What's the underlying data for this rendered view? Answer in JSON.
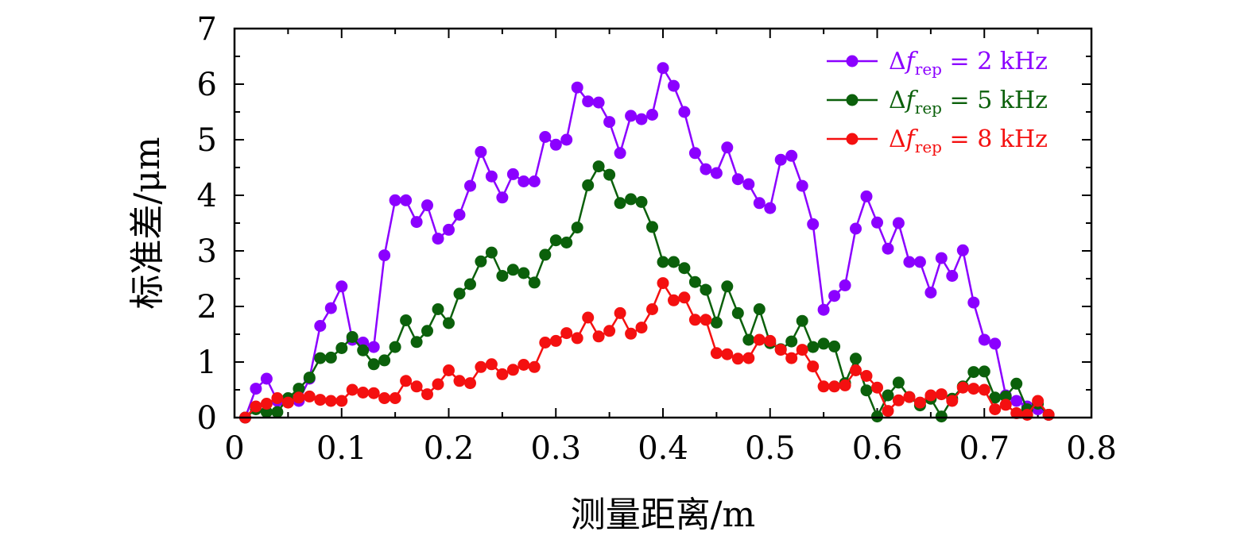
{
  "chart_data": {
    "type": "line",
    "xlabel": "测量距离/m",
    "ylabel": "标准差/μm",
    "xlim": [
      0,
      0.8
    ],
    "ylim": [
      0,
      7
    ],
    "xticks": [
      "0",
      "0.1",
      "0.2",
      "0.3",
      "0.4",
      "0.5",
      "0.6",
      "0.7",
      "0.8"
    ],
    "yticks": [
      "0",
      "1",
      "2",
      "3",
      "4",
      "5",
      "6",
      "7"
    ],
    "grid": false,
    "legend_position": "top-right",
    "series": [
      {
        "name": "Δf_rep = 2 kHz",
        "legend": {
          "delta": "Δ",
          "f": "f",
          "sub": "rep",
          "rest": " = 2 kHz"
        },
        "color": "#8B00FF",
        "x": [
          0.01,
          0.02,
          0.03,
          0.04,
          0.05,
          0.06,
          0.07,
          0.08,
          0.09,
          0.1,
          0.11,
          0.12,
          0.13,
          0.14,
          0.15,
          0.16,
          0.17,
          0.18,
          0.19,
          0.2,
          0.21,
          0.22,
          0.23,
          0.24,
          0.25,
          0.26,
          0.27,
          0.28,
          0.29,
          0.3,
          0.31,
          0.32,
          0.33,
          0.34,
          0.35,
          0.36,
          0.37,
          0.38,
          0.39,
          0.4,
          0.41,
          0.42,
          0.43,
          0.44,
          0.45,
          0.46,
          0.47,
          0.48,
          0.49,
          0.5,
          0.51,
          0.52,
          0.53,
          0.54,
          0.55,
          0.56,
          0.57,
          0.58,
          0.59,
          0.6,
          0.61,
          0.62,
          0.63,
          0.64,
          0.65,
          0.66,
          0.67,
          0.68,
          0.69,
          0.7,
          0.71,
          0.72,
          0.73,
          0.74,
          0.75,
          0.76
        ],
        "y": [
          0,
          0.52,
          0.7,
          0.3,
          0.3,
          0.3,
          0.7,
          1.65,
          1.97,
          2.36,
          1.4,
          1.35,
          1.27,
          2.92,
          3.91,
          3.91,
          3.52,
          3.82,
          3.22,
          3.38,
          3.65,
          4.17,
          4.78,
          4.34,
          3.96,
          4.38,
          4.25,
          4.25,
          5.05,
          4.91,
          5.0,
          5.94,
          5.69,
          5.67,
          5.32,
          4.76,
          5.43,
          5.37,
          5.45,
          6.29,
          5.97,
          5.5,
          4.76,
          4.47,
          4.4,
          4.86,
          4.29,
          4.2,
          3.86,
          3.77,
          4.64,
          4.71,
          4.17,
          3.48,
          1.94,
          2.19,
          2.38,
          3.4,
          3.98,
          3.51,
          3.04,
          3.5,
          2.8,
          2.8,
          2.25,
          2.87,
          2.55,
          3.01,
          2.07,
          1.4,
          1.33,
          0.4,
          0.3,
          0.2,
          0.15,
          0.05
        ]
      },
      {
        "name": "Δf_rep = 5 kHz",
        "legend": {
          "delta": "Δ",
          "f": "f",
          "sub": "rep",
          "rest": " = 5 kHz"
        },
        "color": "#0B600B",
        "x": [
          0.01,
          0.02,
          0.03,
          0.04,
          0.05,
          0.06,
          0.07,
          0.08,
          0.09,
          0.1,
          0.11,
          0.12,
          0.13,
          0.14,
          0.15,
          0.16,
          0.17,
          0.18,
          0.19,
          0.2,
          0.21,
          0.22,
          0.23,
          0.24,
          0.25,
          0.26,
          0.27,
          0.28,
          0.29,
          0.3,
          0.31,
          0.32,
          0.33,
          0.34,
          0.35,
          0.36,
          0.37,
          0.38,
          0.39,
          0.4,
          0.41,
          0.42,
          0.43,
          0.44,
          0.45,
          0.46,
          0.47,
          0.48,
          0.49,
          0.5,
          0.51,
          0.52,
          0.53,
          0.54,
          0.55,
          0.56,
          0.57,
          0.58,
          0.59,
          0.6,
          0.61,
          0.62,
          0.63,
          0.64,
          0.65,
          0.66,
          0.67,
          0.68,
          0.69,
          0.7,
          0.71,
          0.72,
          0.73,
          0.74,
          0.75,
          0.76
        ],
        "y": [
          0,
          0.15,
          0.1,
          0.1,
          0.35,
          0.52,
          0.72,
          1.07,
          1.08,
          1.25,
          1.45,
          1.21,
          0.96,
          1.03,
          1.27,
          1.75,
          1.36,
          1.56,
          1.95,
          1.7,
          2.23,
          2.4,
          2.81,
          2.97,
          2.55,
          2.66,
          2.6,
          2.43,
          2.93,
          3.19,
          3.15,
          3.42,
          4.18,
          4.52,
          4.37,
          3.86,
          3.93,
          3.88,
          3.43,
          2.8,
          2.8,
          2.69,
          2.44,
          2.3,
          1.71,
          2.36,
          1.88,
          1.4,
          1.95,
          1.34,
          1.23,
          1.37,
          1.74,
          1.27,
          1.33,
          1.28,
          0.62,
          1.06,
          0.49,
          0.02,
          0.4,
          0.63,
          0.37,
          0.22,
          0.34,
          0.02,
          0.34,
          0.56,
          0.82,
          0.83,
          0.36,
          0.38,
          0.61,
          0.15,
          0.25,
          0.05
        ]
      },
      {
        "name": "Δf_rep = 8 kHz",
        "legend": {
          "delta": "Δ",
          "f": "f",
          "sub": "rep",
          "rest": " = 8 kHz"
        },
        "color": "#F41010",
        "x": [
          0.01,
          0.02,
          0.03,
          0.04,
          0.05,
          0.06,
          0.07,
          0.08,
          0.09,
          0.1,
          0.11,
          0.12,
          0.13,
          0.14,
          0.15,
          0.16,
          0.17,
          0.18,
          0.19,
          0.2,
          0.21,
          0.22,
          0.23,
          0.24,
          0.25,
          0.26,
          0.27,
          0.28,
          0.29,
          0.3,
          0.31,
          0.32,
          0.33,
          0.34,
          0.35,
          0.36,
          0.37,
          0.38,
          0.39,
          0.4,
          0.41,
          0.42,
          0.43,
          0.44,
          0.45,
          0.46,
          0.47,
          0.48,
          0.49,
          0.5,
          0.51,
          0.52,
          0.53,
          0.54,
          0.55,
          0.56,
          0.57,
          0.58,
          0.59,
          0.6,
          0.61,
          0.62,
          0.63,
          0.64,
          0.65,
          0.66,
          0.67,
          0.68,
          0.69,
          0.7,
          0.71,
          0.72,
          0.73,
          0.74,
          0.75,
          0.76
        ],
        "y": [
          0,
          0.2,
          0.25,
          0.35,
          0.27,
          0.36,
          0.38,
          0.32,
          0.3,
          0.3,
          0.5,
          0.45,
          0.44,
          0.35,
          0.35,
          0.66,
          0.56,
          0.42,
          0.6,
          0.85,
          0.66,
          0.62,
          0.91,
          0.96,
          0.78,
          0.86,
          0.95,
          0.91,
          1.35,
          1.38,
          1.52,
          1.43,
          1.8,
          1.46,
          1.56,
          1.88,
          1.51,
          1.62,
          1.95,
          2.42,
          2.11,
          2.16,
          1.76,
          1.76,
          1.16,
          1.14,
          1.06,
          1.07,
          1.4,
          1.38,
          1.22,
          1.07,
          1.22,
          0.92,
          0.56,
          0.56,
          0.58,
          0.85,
          0.75,
          0.54,
          0.12,
          0.31,
          0.37,
          0.27,
          0.4,
          0.42,
          0.3,
          0.54,
          0.52,
          0.5,
          0.15,
          0.23,
          0.08,
          0.05,
          0.3,
          0.05
        ]
      }
    ]
  }
}
